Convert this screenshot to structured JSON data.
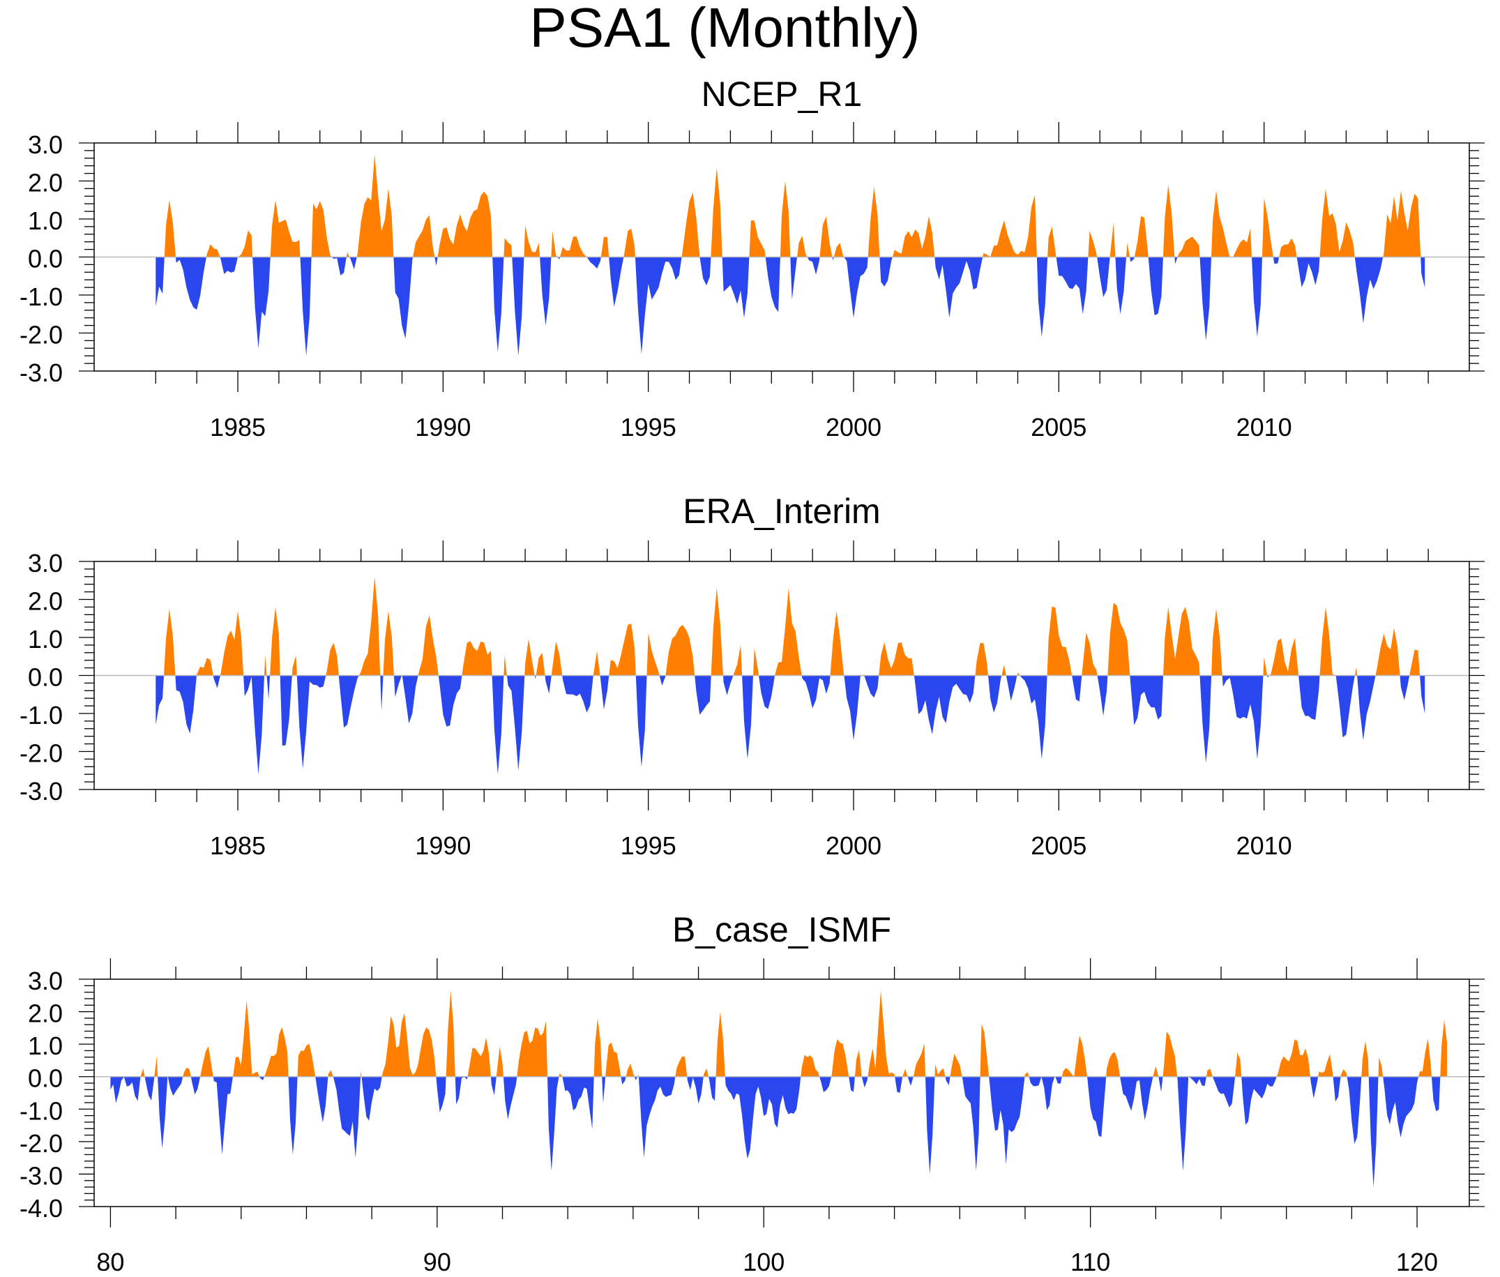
{
  "title": "PSA1 (Monthly)",
  "colors": {
    "positive": "#ff8000",
    "negative": "#2a46ef",
    "axis": "#000000",
    "zero_line": "#b8b8b8"
  },
  "chart_data": [
    {
      "type": "area",
      "title": "NCEP_R1",
      "x_range": [
        1983.0,
        2014.0
      ],
      "xlim": [
        1981.5,
        2015.0
      ],
      "ylim": [
        -3.0,
        3.0
      ],
      "yticks": [
        -3.0,
        -2.0,
        -1.0,
        0.0,
        1.0,
        2.0,
        3.0
      ],
      "ytick_labels": [
        "-3.0",
        "-2.0",
        "-1.0",
        "0.0",
        "1.0",
        "2.0",
        "3.0"
      ],
      "xticks": [
        1985,
        1990,
        1995,
        2000,
        2005,
        2010
      ],
      "xtick_labels": [
        "1985",
        "1990",
        "1995",
        "2000",
        "2005",
        "2010"
      ],
      "positive_color": "#ff8000",
      "negative_color": "#2a46ef",
      "seed": 11,
      "anchors": [
        [
          1983.0,
          -1.3
        ],
        [
          1983.3,
          1.5
        ],
        [
          1985.5,
          -2.4
        ],
        [
          1985.9,
          1.5
        ],
        [
          1986.7,
          -2.6
        ],
        [
          1988.3,
          2.7
        ],
        [
          1988.7,
          1.8
        ],
        [
          1991.3,
          -2.5
        ],
        [
          1991.8,
          -2.6
        ],
        [
          1992.5,
          -1.8
        ],
        [
          1994.8,
          -2.55
        ],
        [
          1996.7,
          2.35
        ],
        [
          1997.3,
          -1.6
        ],
        [
          1998.3,
          2.0
        ],
        [
          2000.0,
          -1.6
        ],
        [
          2000.5,
          1.85
        ],
        [
          2002.3,
          -1.6
        ],
        [
          2004.6,
          -2.1
        ],
        [
          2005.6,
          -1.5
        ],
        [
          2006.5,
          -1.5
        ],
        [
          2007.7,
          1.9
        ],
        [
          2008.6,
          -2.2
        ],
        [
          2008.8,
          1.75
        ],
        [
          2009.8,
          -2.1
        ],
        [
          2011.5,
          1.8
        ],
        [
          2012.4,
          -1.75
        ],
        [
          2013.2,
          1.6
        ],
        [
          2013.9,
          -0.8
        ]
      ]
    },
    {
      "type": "area",
      "title": "ERA_Interim",
      "x_range": [
        1983.0,
        2014.0
      ],
      "xlim": [
        1981.5,
        2015.0
      ],
      "ylim": [
        -3.0,
        3.0
      ],
      "yticks": [
        -3.0,
        -2.0,
        -1.0,
        0.0,
        1.0,
        2.0,
        3.0
      ],
      "ytick_labels": [
        "-3.0",
        "-2.0",
        "-1.0",
        "0.0",
        "1.0",
        "2.0",
        "3.0"
      ],
      "xticks": [
        1985,
        1990,
        1995,
        2000,
        2005,
        2010
      ],
      "xtick_labels": [
        "1985",
        "1990",
        "1995",
        "2000",
        "2005",
        "2010"
      ],
      "positive_color": "#ff8000",
      "negative_color": "#2a46ef",
      "seed": 23,
      "anchors": [
        [
          1983.0,
          -1.3
        ],
        [
          1983.3,
          1.75
        ],
        [
          1985.0,
          1.7
        ],
        [
          1985.5,
          -2.6
        ],
        [
          1985.9,
          1.8
        ],
        [
          1986.6,
          -2.45
        ],
        [
          1988.3,
          2.6
        ],
        [
          1988.7,
          1.7
        ],
        [
          1991.3,
          -2.6
        ],
        [
          1991.8,
          -2.5
        ],
        [
          1994.8,
          -2.4
        ],
        [
          1996.7,
          2.3
        ],
        [
          1997.4,
          -2.2
        ],
        [
          1998.4,
          2.3
        ],
        [
          1999.6,
          1.7
        ],
        [
          2000.0,
          -1.7
        ],
        [
          2004.6,
          -2.2
        ],
        [
          2007.7,
          1.8
        ],
        [
          2008.6,
          -2.3
        ],
        [
          2008.8,
          1.75
        ],
        [
          2009.8,
          -2.2
        ],
        [
          2011.5,
          1.8
        ],
        [
          2012.4,
          -1.7
        ],
        [
          2013.2,
          1.25
        ],
        [
          2013.9,
          -1.0
        ]
      ]
    },
    {
      "type": "area",
      "title": "B_case_ISMF",
      "x_range": [
        80.0,
        121.0
      ],
      "xlim": [
        79.5,
        121.6
      ],
      "ylim": [
        -4.0,
        3.0
      ],
      "yticks": [
        -4.0,
        -3.0,
        -2.0,
        -1.0,
        0.0,
        1.0,
        2.0,
        3.0
      ],
      "ytick_labels": [
        "-4.0",
        "-3.0",
        "-2.0",
        "-1.0",
        "0.0",
        "1.0",
        "2.0",
        "3.0"
      ],
      "xticks": [
        80,
        90,
        100,
        110,
        120
      ],
      "xtick_labels": [
        "80",
        "90",
        "100",
        "110",
        "120"
      ],
      "positive_color": "#ff8000",
      "negative_color": "#2a46ef",
      "seed": 37,
      "anchors": [
        [
          80.0,
          -0.4
        ],
        [
          81.6,
          -2.2
        ],
        [
          83.4,
          -2.4
        ],
        [
          84.2,
          2.35
        ],
        [
          85.6,
          -2.4
        ],
        [
          87.5,
          -2.5
        ],
        [
          90.4,
          2.65
        ],
        [
          93.5,
          -2.9
        ],
        [
          94.9,
          1.8
        ],
        [
          96.3,
          -2.5
        ],
        [
          98.7,
          2.0
        ],
        [
          103.6,
          2.65
        ],
        [
          105.1,
          -3.0
        ],
        [
          106.5,
          -2.9
        ],
        [
          107.4,
          -2.7
        ],
        [
          112.8,
          -2.9
        ],
        [
          118.7,
          -3.4
        ],
        [
          120.8,
          1.75
        ]
      ]
    }
  ]
}
